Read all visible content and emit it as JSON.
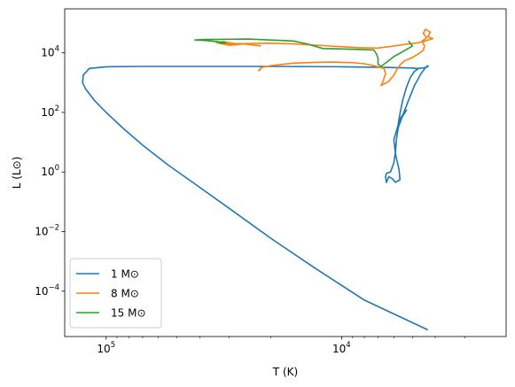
{
  "chart_data": {
    "type": "line",
    "title": "",
    "xlabel": "T (K)",
    "ylabel": "L (L⊙)",
    "xscale": "log",
    "yscale": "log",
    "x_inverted": true,
    "xlim": [
      150000,
      2000
    ],
    "ylim": [
      3e-06,
      300000
    ],
    "grid": false,
    "legend_position": "lower-left",
    "x_ticks": [
      {
        "value": 100000,
        "base": "10",
        "exp": "5"
      },
      {
        "value": 10000,
        "base": "10",
        "exp": "4"
      }
    ],
    "y_ticks": [
      {
        "value": 0.0001,
        "base": "10",
        "exp": "−4"
      },
      {
        "value": 0.01,
        "base": "10",
        "exp": "−2"
      },
      {
        "value": 1,
        "base": "10",
        "exp": "0"
      },
      {
        "value": 100,
        "base": "10",
        "exp": "2"
      },
      {
        "value": 10000,
        "base": "10",
        "exp": "4"
      }
    ],
    "series": [
      {
        "name": "1 M⊙",
        "color": "#1f77b4",
        "points": [
          [
            4700,
            3000
          ],
          [
            4900,
            2400
          ],
          [
            5100,
            1500
          ],
          [
            5300,
            700
          ],
          [
            5500,
            260
          ],
          [
            5650,
            90
          ],
          [
            5750,
            40
          ],
          [
            5600,
            60
          ],
          [
            5300,
            120
          ],
          [
            5450,
            90
          ],
          [
            5650,
            60
          ],
          [
            5800,
            30
          ],
          [
            6000,
            12
          ],
          [
            5900,
            4
          ],
          [
            5700,
            1.2
          ],
          [
            5650,
            0.55
          ],
          [
            5900,
            0.45
          ],
          [
            6100,
            0.6
          ],
          [
            6300,
            0.7
          ],
          [
            6450,
            0.45
          ],
          [
            6500,
            0.7
          ],
          [
            6450,
            0.9
          ],
          [
            6200,
            1
          ],
          [
            6000,
            2
          ],
          [
            5900,
            5
          ],
          [
            5850,
            12
          ],
          [
            5750,
            30
          ],
          [
            5500,
            80
          ],
          [
            5200,
            250
          ],
          [
            4900,
            800
          ],
          [
            4600,
            2000
          ],
          [
            4400,
            3200
          ],
          [
            4300,
            3700
          ],
          [
            4300,
            3400
          ],
          [
            4500,
            3100
          ],
          [
            4800,
            3000
          ],
          [
            5000,
            3100
          ],
          [
            7000,
            3300
          ],
          [
            10000,
            3400
          ],
          [
            20000,
            3500
          ],
          [
            40000,
            3500
          ],
          [
            70000,
            3500
          ],
          [
            100000,
            3400
          ],
          [
            118000,
            3000
          ],
          [
            125000,
            1800
          ],
          [
            126000,
            1000
          ],
          [
            122000,
            600
          ],
          [
            112000,
            250
          ],
          [
            100000,
            100
          ],
          [
            85000,
            30
          ],
          [
            70000,
            8
          ],
          [
            55000,
            1.8
          ],
          [
            42000,
            0.4
          ],
          [
            30000,
            0.06
          ],
          [
            20000,
            0.006
          ],
          [
            13000,
            0.0006
          ],
          [
            8000,
            5e-05
          ],
          [
            4300,
            5e-06
          ]
        ]
      },
      {
        "name": "8 M⊙",
        "color": "#ff7f0e",
        "points": [
          [
            22000,
            2900
          ],
          [
            22500,
            2500
          ],
          [
            22000,
            3200
          ],
          [
            20000,
            3700
          ],
          [
            16000,
            4500
          ],
          [
            13000,
            4800
          ],
          [
            11000,
            4900
          ],
          [
            9000,
            4700
          ],
          [
            8000,
            4300
          ],
          [
            7400,
            3800
          ],
          [
            6600,
            3000
          ],
          [
            6500,
            2000
          ],
          [
            6700,
            1000
          ],
          [
            6800,
            800
          ],
          [
            6300,
            1100
          ],
          [
            6000,
            1800
          ],
          [
            5800,
            2900
          ],
          [
            5600,
            4200
          ],
          [
            5400,
            5400
          ],
          [
            5000,
            7000
          ],
          [
            4700,
            9500
          ],
          [
            4500,
            12000
          ],
          [
            4450,
            17000
          ],
          [
            4550,
            25000
          ],
          [
            4350,
            32000
          ],
          [
            4500,
            45000
          ],
          [
            4400,
            62000
          ],
          [
            4200,
            50000
          ],
          [
            4300,
            35000
          ],
          [
            4100,
            30000
          ],
          [
            4500,
            24000
          ],
          [
            4700,
            22000
          ],
          [
            5200,
            20000
          ],
          [
            6000,
            17000
          ],
          [
            7000,
            14500
          ],
          [
            8500,
            15000
          ],
          [
            12000,
            17500
          ],
          [
            16000,
            20000
          ],
          [
            20000,
            21000
          ],
          [
            25000,
            20500
          ],
          [
            30000,
            20000
          ],
          [
            32000,
            24000
          ],
          [
            28000,
            20000
          ],
          [
            34000,
            22000
          ],
          [
            30000,
            18000
          ],
          [
            26000,
            20000
          ],
          [
            22000,
            17000
          ]
        ]
      },
      {
        "name": "15 M⊙",
        "color": "#2ca02c",
        "points": [
          [
            33000,
            21000
          ],
          [
            31000,
            22000
          ],
          [
            34000,
            24000
          ],
          [
            38000,
            26000
          ],
          [
            42000,
            27000
          ],
          [
            38000,
            28000
          ],
          [
            32000,
            28500
          ],
          [
            25000,
            29000
          ],
          [
            20000,
            27000
          ],
          [
            18000,
            26000
          ],
          [
            16000,
            25000
          ],
          [
            14000,
            20000
          ],
          [
            12000,
            14000
          ],
          [
            10000,
            13500
          ],
          [
            8000,
            13000
          ],
          [
            7300,
            12500
          ],
          [
            7100,
            9000
          ],
          [
            7000,
            6500
          ],
          [
            7000,
            4200
          ],
          [
            6800,
            3500
          ],
          [
            6600,
            4200
          ],
          [
            6300,
            5500
          ],
          [
            6000,
            7500
          ],
          [
            5500,
            11000
          ],
          [
            5000,
            17000
          ],
          [
            5200,
            25000
          ]
        ]
      }
    ]
  }
}
